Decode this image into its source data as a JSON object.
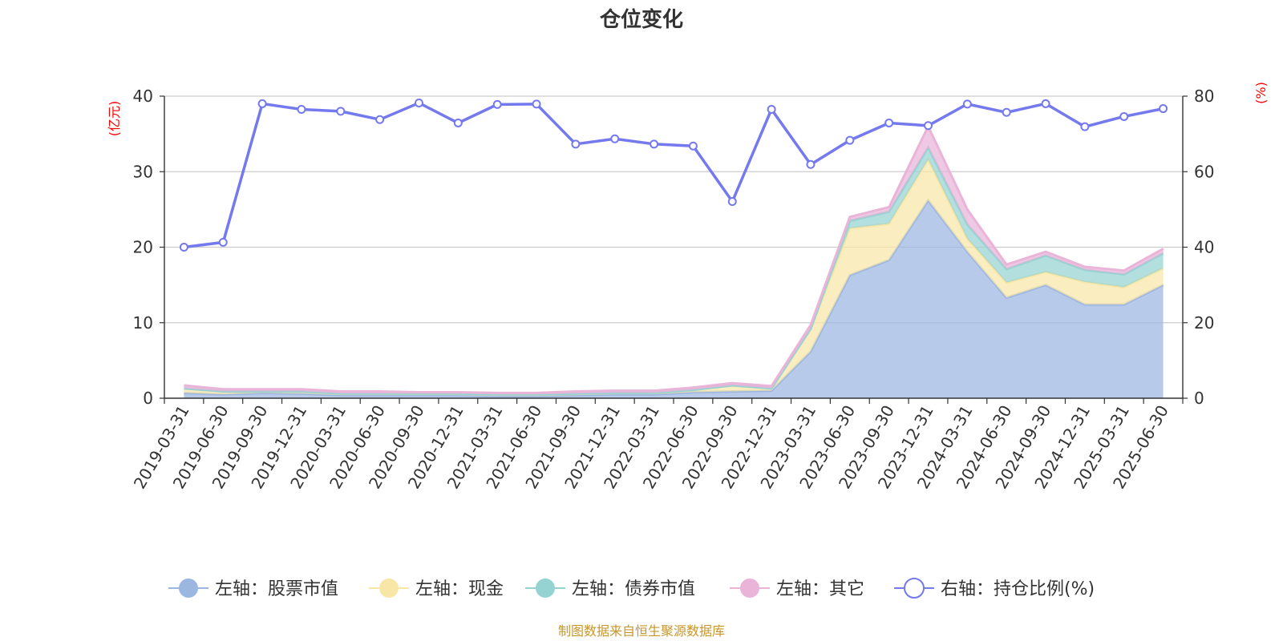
{
  "chart_data": {
    "type": "area",
    "title": "仓位变化",
    "left_unit": "(亿元)",
    "right_unit": "(%)",
    "ylim_left": [
      0,
      40
    ],
    "ylim_right": [
      0,
      80
    ],
    "yticks_left": [
      "0",
      "10",
      "20",
      "30",
      "40"
    ],
    "yticks_right": [
      "0",
      "20",
      "40",
      "60",
      "80"
    ],
    "categories": [
      "2019-03-31",
      "2019-06-30",
      "2019-09-30",
      "2019-12-31",
      "2020-03-31",
      "2020-06-30",
      "2020-09-30",
      "2020-12-31",
      "2021-03-31",
      "2021-06-30",
      "2021-09-30",
      "2021-12-31",
      "2022-03-31",
      "2022-06-30",
      "2022-09-30",
      "2022-12-31",
      "2023-03-31",
      "2023-06-30",
      "2023-09-30",
      "2023-12-31",
      "2024-03-31",
      "2024-06-30",
      "2024-09-30",
      "2024-12-31",
      "2025-03-31",
      "2025-06-30"
    ],
    "grid": true,
    "legend_position": "bottom",
    "stacked": true,
    "series": [
      {
        "name": "左轴：股票市值",
        "axis": "left",
        "color": "#9cb6e2",
        "values": [
          0.7,
          0.5,
          0.7,
          0.6,
          0.4,
          0.4,
          0.4,
          0.4,
          0.3,
          0.3,
          0.4,
          0.5,
          0.5,
          0.8,
          0.9,
          1.0,
          6.2,
          16.3,
          18.3,
          26.2,
          19.4,
          13.3,
          15.0,
          12.4,
          12.4,
          15.0
        ]
      },
      {
        "name": "左轴：现金",
        "axis": "left",
        "color": "#f8e6a6",
        "values": [
          0.6,
          0.4,
          0.2,
          0.3,
          0.2,
          0.2,
          0.2,
          0.2,
          0.2,
          0.2,
          0.2,
          0.2,
          0.2,
          0.3,
          0.8,
          0.3,
          3.0,
          6.2,
          4.8,
          5.4,
          1.7,
          2.0,
          1.7,
          3.0,
          2.3,
          2.2
        ]
      },
      {
        "name": "左轴：债券市值",
        "axis": "left",
        "color": "#95d3d2",
        "values": [
          0.0,
          0.0,
          0.0,
          0.0,
          0.0,
          0.0,
          0.0,
          0.0,
          0.0,
          0.0,
          0.0,
          0.0,
          0.0,
          0.0,
          0.0,
          0.0,
          0.0,
          1.0,
          1.6,
          1.6,
          1.9,
          1.8,
          2.2,
          1.6,
          1.7,
          2.0
        ]
      },
      {
        "name": "左轴：其它",
        "axis": "left",
        "color": "#e9b4d8",
        "values": [
          0.4,
          0.3,
          0.3,
          0.3,
          0.3,
          0.3,
          0.2,
          0.2,
          0.2,
          0.2,
          0.3,
          0.3,
          0.3,
          0.3,
          0.3,
          0.3,
          0.5,
          0.5,
          0.6,
          2.8,
          2.0,
          0.6,
          0.5,
          0.4,
          0.5,
          0.6
        ]
      },
      {
        "name": "右轴：持仓比例(%)",
        "axis": "right",
        "color": "#7479ee",
        "values": [
          40.0,
          41.3,
          78.0,
          76.5,
          76.0,
          73.8,
          78.2,
          72.9,
          77.8,
          77.9,
          67.3,
          68.7,
          67.3,
          66.8,
          52.1,
          76.5,
          61.9,
          68.3,
          72.9,
          72.2,
          77.9,
          75.7,
          78.0,
          71.9,
          74.6,
          76.7
        ]
      }
    ]
  },
  "footer": {
    "source": "制图数据来自恒生聚源数据库"
  }
}
